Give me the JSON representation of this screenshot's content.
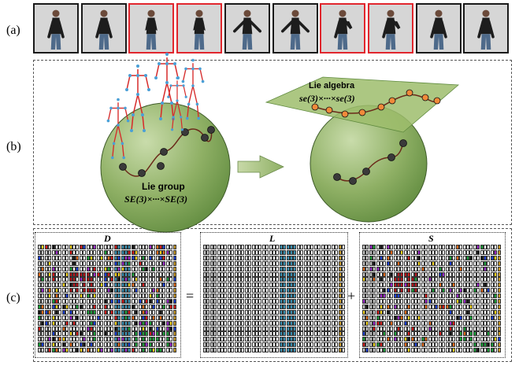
{
  "panels": {
    "a": "(a)",
    "b": "(b)",
    "c": "(c)"
  },
  "frames": [
    {
      "highlighted": false,
      "pose": "arms-down"
    },
    {
      "highlighted": false,
      "pose": "arms-down"
    },
    {
      "highlighted": true,
      "pose": "hands-chest"
    },
    {
      "highlighted": true,
      "pose": "hands-chest"
    },
    {
      "highlighted": false,
      "pose": "arms-out"
    },
    {
      "highlighted": false,
      "pose": "arms-out"
    },
    {
      "highlighted": true,
      "pose": "arm-raise"
    },
    {
      "highlighted": true,
      "pose": "arm-raise"
    },
    {
      "highlighted": false,
      "pose": "arms-down"
    },
    {
      "highlighted": false,
      "pose": "arms-down"
    }
  ],
  "lie_group": {
    "title": "Lie group",
    "formula": "SE(3)×···×SE(3)"
  },
  "lie_algebra": {
    "title": "Lie algebra",
    "formula": "se(3)×···×se(3)"
  },
  "matrices": {
    "D": "D",
    "L": "L",
    "S": "S",
    "equals": "=",
    "plus": "+"
  },
  "colors": {
    "frame_highlight": "#e1262d",
    "sphere": "#7ea35a",
    "plane": "#9dbd6c",
    "algebra_point": "#f08a3a",
    "group_point": "#3a3a3a",
    "skeleton_red": "#d62a2a",
    "skeleton_blue": "#4a9fd6",
    "column_blue": "#3a8fb0"
  }
}
